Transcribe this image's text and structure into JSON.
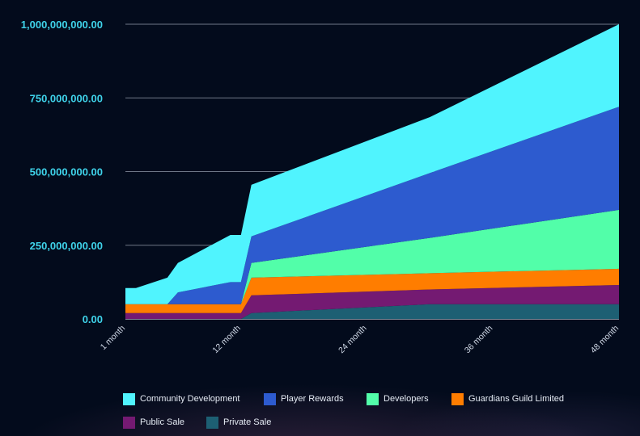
{
  "chart_data": {
    "type": "area",
    "stacked": true,
    "title": "",
    "xlabel": "",
    "ylabel": "",
    "ylim": [
      0,
      1000000000
    ],
    "grid": true,
    "legend_position": "bottom",
    "y_ticks": [
      "0.00",
      "250,000,000.00",
      "500,000,000.00",
      "750,000,000.00",
      "1,000,000,000.00"
    ],
    "x_ticks": [
      "1 month",
      "12 month",
      "24 month",
      "36 month",
      "48 month"
    ],
    "x": [
      1,
      2,
      5,
      6,
      11,
      12,
      13,
      30,
      48
    ],
    "series": [
      {
        "name": "Private Sale",
        "color": "#1d5f73",
        "values": [
          0,
          0,
          0,
          0,
          0,
          0,
          20000000,
          50000000,
          50000000
        ]
      },
      {
        "name": "Public Sale",
        "color": "#741a72",
        "values": [
          20000000,
          20000000,
          20000000,
          20000000,
          20000000,
          20000000,
          60000000,
          50000000,
          65000000
        ]
      },
      {
        "name": "Guardians Guild Limited",
        "color": "#ff7d00",
        "values": [
          30000000,
          30000000,
          30000000,
          30000000,
          30000000,
          30000000,
          60000000,
          55000000,
          55000000
        ]
      },
      {
        "name": "Developers",
        "color": "#52fea9",
        "values": [
          0,
          0,
          0,
          0,
          0,
          0,
          50000000,
          120000000,
          200000000
        ]
      },
      {
        "name": "Player Rewards",
        "color": "#2d5bcf",
        "values": [
          0,
          0,
          0,
          40000000,
          75000000,
          75000000,
          90000000,
          220000000,
          350000000
        ]
      },
      {
        "name": "Community Development",
        "color": "#50f4fe",
        "values": [
          55000000,
          55000000,
          90000000,
          100000000,
          160000000,
          160000000,
          175000000,
          190000000,
          280000000
        ]
      }
    ],
    "legend_order": [
      "Community Development",
      "Player Rewards",
      "Developers",
      "Guardians Guild Limited",
      "Public Sale",
      "Private Sale"
    ]
  }
}
